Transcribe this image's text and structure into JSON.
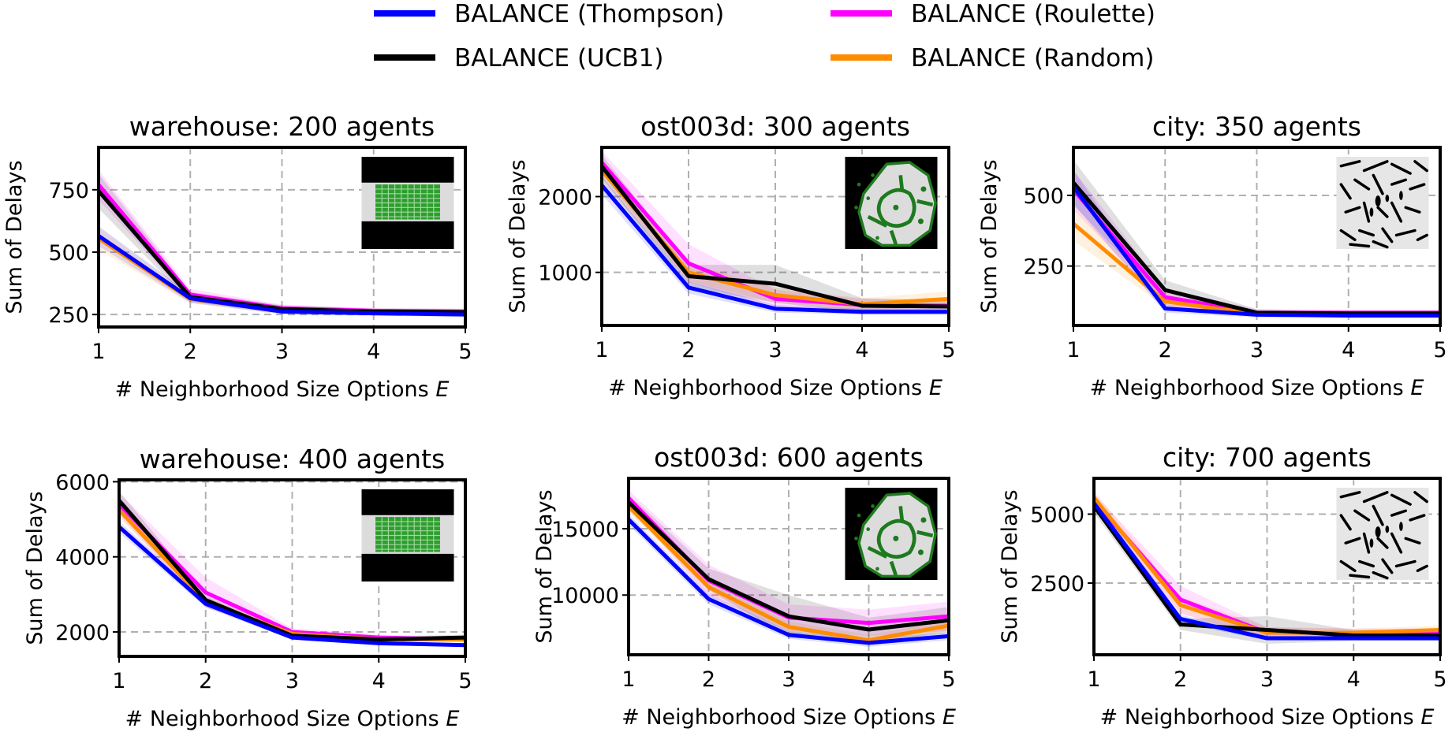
{
  "legend": [
    {
      "label": "BALANCE (Thompson)",
      "color": "#0000ff"
    },
    {
      "label": "BALANCE (UCB1)",
      "color": "#000000"
    },
    {
      "label": "BALANCE (Roulette)",
      "color": "#ff00ff"
    },
    {
      "label": "BALANCE (Random)",
      "color": "#ff8c00"
    }
  ],
  "chart_data": [
    {
      "type": "line",
      "title": "warehouse: 200 agents",
      "xlabel_main": "# Neighborhood Size Options ",
      "xlabel_var": "E",
      "ylabel": "Sum of Delays",
      "x": [
        1,
        2,
        3,
        4,
        5
      ],
      "xlim": [
        1,
        5
      ],
      "ylim": [
        200,
        920
      ],
      "yticks": [
        250,
        500,
        750
      ],
      "grid": true,
      "inset_map": "warehouse-map",
      "series": [
        {
          "name": "BALANCE (Thompson)",
          "values": [
            565,
            315,
            262,
            255,
            250
          ],
          "band": [
            40,
            18,
            12,
            10,
            10
          ]
        },
        {
          "name": "BALANCE (UCB1)",
          "values": [
            745,
            320,
            272,
            262,
            260
          ],
          "band": [
            70,
            20,
            15,
            12,
            12
          ]
        },
        {
          "name": "BALANCE (Roulette)",
          "values": [
            770,
            330,
            275,
            265,
            262
          ],
          "band": [
            60,
            22,
            15,
            12,
            12
          ]
        },
        {
          "name": "BALANCE (Random)",
          "values": [
            555,
            312,
            265,
            258,
            256
          ],
          "band": [
            45,
            18,
            12,
            10,
            10
          ]
        }
      ]
    },
    {
      "type": "line",
      "title": "ost003d: 300 agents",
      "xlabel_main": "# Neighborhood Size Options ",
      "xlabel_var": "E",
      "ylabel": "Sum of Delays",
      "x": [
        1,
        2,
        3,
        4,
        5
      ],
      "xlim": [
        1,
        5
      ],
      "ylim": [
        300,
        2650
      ],
      "yticks": [
        1000,
        2000
      ],
      "grid": true,
      "inset_map": "ost003d-map",
      "series": [
        {
          "name": "BALANCE (Thompson)",
          "values": [
            2150,
            800,
            520,
            480,
            480
          ],
          "band": [
            120,
            80,
            50,
            40,
            40
          ]
        },
        {
          "name": "BALANCE (UCB1)",
          "values": [
            2400,
            950,
            850,
            560,
            550
          ],
          "band": [
            150,
            150,
            250,
            100,
            80
          ]
        },
        {
          "name": "BALANCE (Roulette)",
          "values": [
            2450,
            1120,
            650,
            570,
            560
          ],
          "band": [
            150,
            250,
            120,
            80,
            80
          ]
        },
        {
          "name": "BALANCE (Random)",
          "values": [
            2350,
            1000,
            700,
            580,
            650
          ],
          "band": [
            150,
            120,
            100,
            80,
            100
          ]
        }
      ]
    },
    {
      "type": "line",
      "title": "city: 350 agents",
      "xlabel_main": "# Neighborhood Size Options ",
      "xlabel_var": "E",
      "ylabel": "Sum of Delays",
      "x": [
        1,
        2,
        3,
        4,
        5
      ],
      "xlim": [
        1,
        5
      ],
      "ylim": [
        40,
        670
      ],
      "yticks": [
        250,
        500
      ],
      "grid": true,
      "inset_map": "city-map",
      "series": [
        {
          "name": "BALANCE (Thompson)",
          "values": [
            530,
            100,
            78,
            75,
            75
          ],
          "band": [
            60,
            15,
            10,
            8,
            8
          ]
        },
        {
          "name": "BALANCE (UCB1)",
          "values": [
            545,
            165,
            85,
            82,
            82
          ],
          "band": [
            80,
            35,
            12,
            10,
            10
          ]
        },
        {
          "name": "BALANCE (Roulette)",
          "values": [
            520,
            140,
            85,
            85,
            85
          ],
          "band": [
            70,
            30,
            12,
            10,
            10
          ]
        },
        {
          "name": "BALANCE (Random)",
          "values": [
            400,
            125,
            80,
            78,
            78
          ],
          "band": [
            60,
            20,
            10,
            8,
            8
          ]
        }
      ]
    },
    {
      "type": "line",
      "title": "warehouse: 400 agents",
      "xlabel_main": "# Neighborhood Size Options ",
      "xlabel_var": "E",
      "ylabel": "Sum of Delays",
      "x": [
        1,
        2,
        3,
        4,
        5
      ],
      "xlim": [
        1,
        5
      ],
      "ylim": [
        1350,
        6050
      ],
      "yticks": [
        2000,
        4000,
        6000
      ],
      "grid": true,
      "inset_map": "warehouse-map",
      "series": [
        {
          "name": "BALANCE (Thompson)",
          "values": [
            4800,
            2750,
            1850,
            1700,
            1650
          ],
          "band": [
            150,
            100,
            60,
            50,
            50
          ]
        },
        {
          "name": "BALANCE (UCB1)",
          "values": [
            5500,
            2850,
            1900,
            1800,
            1850
          ],
          "band": [
            250,
            120,
            80,
            60,
            80
          ]
        },
        {
          "name": "BALANCE (Roulette)",
          "values": [
            5400,
            3050,
            2000,
            1850,
            1800
          ],
          "band": [
            300,
            400,
            100,
            80,
            80
          ]
        },
        {
          "name": "BALANCE (Random)",
          "values": [
            5250,
            2800,
            1950,
            1800,
            1800
          ],
          "band": [
            200,
            120,
            80,
            60,
            60
          ]
        }
      ]
    },
    {
      "type": "line",
      "title": "ost003d: 600 agents",
      "xlabel_main": "# Neighborhood Size Options ",
      "xlabel_var": "E",
      "ylabel": "Sum of Delays",
      "x": [
        1,
        2,
        3,
        4,
        5
      ],
      "xlim": [
        1,
        5
      ],
      "ylim": [
        5500,
        18800
      ],
      "yticks": [
        10000,
        15000
      ],
      "grid": true,
      "inset_map": "ost003d-map",
      "series": [
        {
          "name": "BALANCE (Thompson)",
          "values": [
            15700,
            9700,
            7000,
            6400,
            6900
          ],
          "band": [
            400,
            400,
            300,
            300,
            300
          ]
        },
        {
          "name": "BALANCE (UCB1)",
          "values": [
            17000,
            11200,
            8400,
            7400,
            8100
          ],
          "band": [
            600,
            800,
            1600,
            900,
            1000
          ]
        },
        {
          "name": "BALANCE (Roulette)",
          "values": [
            17300,
            11100,
            8300,
            7900,
            8400
          ],
          "band": [
            600,
            1200,
            1000,
            1000,
            1100
          ]
        },
        {
          "name": "BALANCE (Random)",
          "values": [
            16700,
            10600,
            7600,
            6600,
            7700
          ],
          "band": [
            500,
            500,
            400,
            400,
            400
          ]
        }
      ]
    },
    {
      "type": "line",
      "title": "city: 700 agents",
      "xlabel_main": "# Neighborhood Size Options ",
      "xlabel_var": "E",
      "ylabel": "Sum of Delays",
      "x": [
        1,
        2,
        3,
        4,
        5
      ],
      "xlim": [
        1,
        5
      ],
      "ylim": [
        -100,
        6300
      ],
      "yticks": [
        2500,
        5000
      ],
      "grid": true,
      "inset_map": "city-map",
      "series": [
        {
          "name": "BALANCE (Thompson)",
          "values": [
            5400,
            1200,
            500,
            500,
            500
          ],
          "band": [
            200,
            150,
            80,
            80,
            80
          ]
        },
        {
          "name": "BALANCE (UCB1)",
          "values": [
            5300,
            1000,
            800,
            600,
            600
          ],
          "band": [
            250,
            200,
            500,
            200,
            200
          ]
        },
        {
          "name": "BALANCE (Roulette)",
          "values": [
            5500,
            1900,
            700,
            700,
            700
          ],
          "band": [
            250,
            500,
            200,
            150,
            150
          ]
        },
        {
          "name": "BALANCE (Random)",
          "values": [
            5600,
            1700,
            700,
            700,
            800
          ],
          "band": [
            250,
            300,
            200,
            150,
            150
          ]
        }
      ]
    }
  ]
}
